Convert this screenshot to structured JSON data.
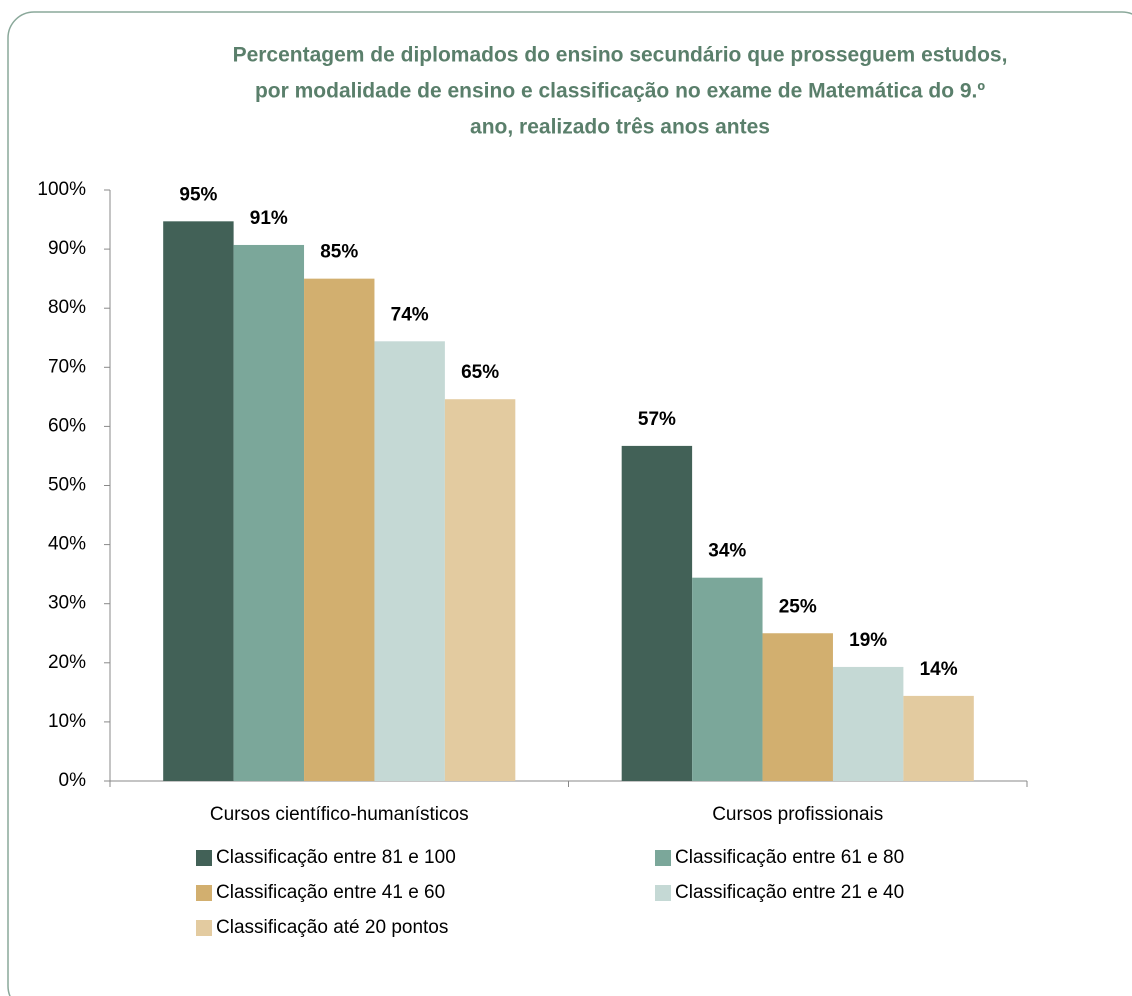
{
  "chart_data": {
    "type": "bar",
    "title": [
      "Percentagem de diplomados do ensino secundário que prosseguem estudos,",
      "por modalidade de ensino e classificação no exame de Matemática do 9.º",
      "ano, realizado três anos antes"
    ],
    "categories": [
      "Cursos científico-humanísticos",
      "Cursos profissionais"
    ],
    "series": [
      {
        "name": "Classificação entre 81 e 100",
        "color": "#426157",
        "values": [
          94.7,
          56.7
        ],
        "value_labels": [
          "95%",
          "57%"
        ]
      },
      {
        "name": "Classificação entre 61 e 80",
        "color": "#7ba79a",
        "values": [
          90.7,
          34.4
        ],
        "value_labels": [
          "91%",
          "34%"
        ]
      },
      {
        "name": "Classificação entre 41 e 60",
        "color": "#d2af6f",
        "values": [
          85,
          25
        ],
        "value_labels": [
          "85%",
          "25%"
        ]
      },
      {
        "name": "Classificação entre 21 e 40",
        "color": "#c5d9d5",
        "values": [
          74.4,
          19.3
        ],
        "value_labels": [
          "74%",
          "19%"
        ]
      },
      {
        "name": "Classificação até 20 pontos",
        "color": "#e3cba0",
        "values": [
          64.6,
          14.4
        ],
        "value_labels": [
          "65%",
          "14%"
        ]
      }
    ],
    "ylim": [
      0,
      100
    ],
    "yticks": [
      {
        "value": 0,
        "label": "0%"
      },
      {
        "value": 10,
        "label": "10%"
      },
      {
        "value": 20,
        "label": "20%"
      },
      {
        "value": 30,
        "label": "30%"
      },
      {
        "value": 40,
        "label": "40%"
      },
      {
        "value": 50,
        "label": "50%"
      },
      {
        "value": 60,
        "label": "60%"
      },
      {
        "value": 70,
        "label": "70%"
      },
      {
        "value": 80,
        "label": "80%"
      },
      {
        "value": 90,
        "label": "90%"
      },
      {
        "value": 100,
        "label": "100%"
      }
    ],
    "grid": false,
    "legend": "bottom"
  }
}
